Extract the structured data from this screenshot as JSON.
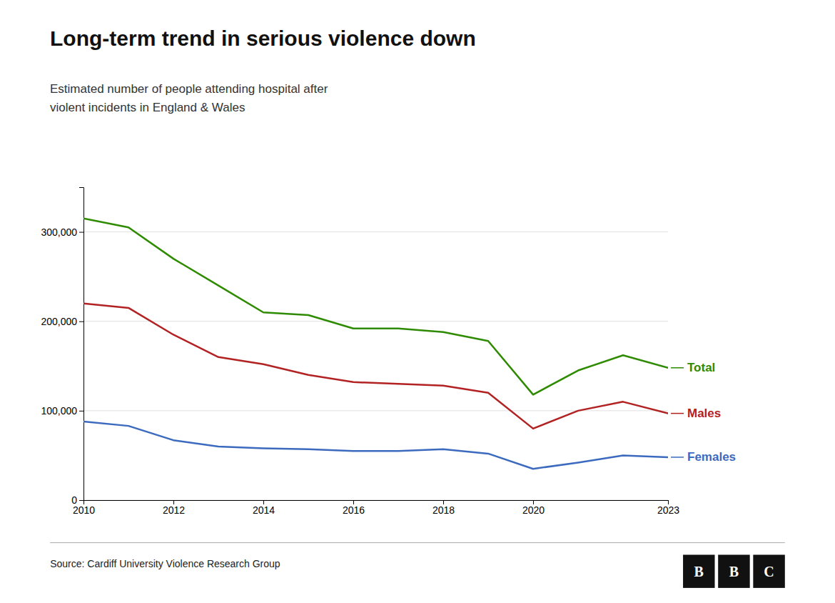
{
  "chart_data": {
    "type": "line",
    "title": "Long-term trend in serious violence down",
    "subtitle": "Estimated number of people attending hospital after\nviolent incidents in England & Wales",
    "source": "Source: Cardiff University Violence Research Group",
    "logo": [
      "B",
      "B",
      "C"
    ],
    "x": [
      2010,
      2011,
      2012,
      2013,
      2014,
      2015,
      2016,
      2017,
      2018,
      2019,
      2020,
      2021,
      2022,
      2023
    ],
    "series": [
      {
        "name": "Total",
        "color": "#2e8b00",
        "values": [
          315000,
          305000,
          270000,
          240000,
          210000,
          207000,
          192000,
          192000,
          188000,
          178000,
          118000,
          145000,
          162000,
          148000
        ]
      },
      {
        "name": "Males",
        "color": "#b22222",
        "values": [
          220000,
          215000,
          185000,
          160000,
          152000,
          140000,
          132000,
          130000,
          128000,
          120000,
          80000,
          100000,
          110000,
          97000
        ]
      },
      {
        "name": "Females",
        "color": "#3b6abf",
        "values": [
          88000,
          83000,
          67000,
          60000,
          58000,
          57000,
          55000,
          55000,
          57000,
          52000,
          35000,
          42000,
          50000,
          48000
        ]
      }
    ],
    "xlim": [
      2010,
      2023
    ],
    "xticks": [
      2010,
      2012,
      2014,
      2016,
      2018,
      2020,
      2023
    ],
    "ylim": [
      0,
      350000
    ],
    "yticks": [
      0,
      {
        "value": 100000,
        "label": "100,000"
      },
      {
        "value": 200000,
        "label": "200,000"
      },
      {
        "value": 300000,
        "label": "300,000"
      }
    ],
    "grid": true,
    "legend": "right"
  }
}
